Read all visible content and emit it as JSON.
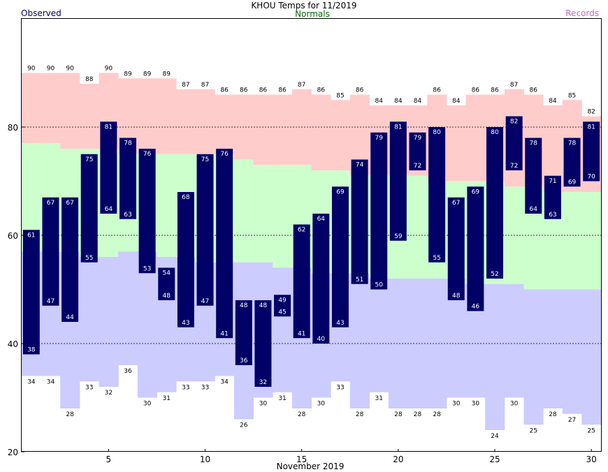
{
  "chart_data": {
    "type": "bar",
    "title": "KHOU Temps for 11/2019",
    "legend": {
      "observed": "Observed",
      "normals": "Normals",
      "records": "Records"
    },
    "xlabel": "November 2019",
    "ylabel": "",
    "xlim": [
      0.5,
      30.5
    ],
    "ylim": [
      20,
      100
    ],
    "x_ticks": [
      5,
      10,
      15,
      20,
      25,
      30
    ],
    "y_ticks": [
      20,
      40,
      60,
      80
    ],
    "gridlines_at": [
      40,
      60,
      80
    ],
    "days": [
      1,
      2,
      3,
      4,
      5,
      6,
      7,
      8,
      9,
      10,
      11,
      12,
      13,
      14,
      15,
      16,
      17,
      18,
      19,
      20,
      21,
      22,
      23,
      24,
      25,
      26,
      27,
      28,
      29,
      30
    ],
    "observed_high": [
      61,
      67,
      67,
      75,
      81,
      78,
      76,
      54,
      68,
      75,
      76,
      48,
      48,
      49,
      62,
      64,
      69,
      74,
      79,
      81,
      79,
      80,
      67,
      69,
      80,
      82,
      78,
      71,
      78,
      81
    ],
    "observed_low": [
      38,
      47,
      44,
      55,
      64,
      63,
      53,
      48,
      43,
      47,
      41,
      36,
      32,
      45,
      41,
      40,
      43,
      51,
      50,
      59,
      72,
      55,
      48,
      46,
      52,
      72,
      64,
      63,
      69,
      70
    ],
    "normal_high": [
      77,
      77,
      76,
      76,
      76,
      75,
      75,
      75,
      75,
      75,
      75,
      74,
      73,
      73,
      73,
      72,
      72,
      71,
      71,
      71,
      71,
      70,
      70,
      70,
      70,
      69,
      69,
      68,
      68,
      68
    ],
    "normal_low": [
      57,
      57,
      57,
      56,
      56,
      57,
      57,
      56,
      56,
      55,
      55,
      55,
      55,
      54,
      54,
      53,
      53,
      53,
      52,
      52,
      52,
      52,
      52,
      51,
      51,
      51,
      50,
      50,
      50,
      50
    ],
    "record_high": [
      90,
      90,
      90,
      88,
      90,
      89,
      89,
      89,
      87,
      87,
      86,
      86,
      86,
      86,
      87,
      86,
      85,
      86,
      84,
      84,
      84,
      86,
      84,
      86,
      86,
      87,
      86,
      84,
      85,
      82
    ],
    "record_low": [
      34,
      34,
      28,
      33,
      32,
      36,
      30,
      31,
      33,
      33,
      34,
      26,
      30,
      31,
      28,
      30,
      33,
      28,
      31,
      28,
      28,
      28,
      30,
      30,
      24,
      30,
      25,
      28,
      27,
      25
    ],
    "colors": {
      "observed_bar": "#000066",
      "observed_label": "#000066",
      "normals_band": "#ccffcc",
      "normals_label": "#006600",
      "records_high_band": "#ffcccc",
      "records_low_band": "#ccccff",
      "records_label": "#cc66cc",
      "bar_value_text": "#ffffff",
      "grid": "#000000"
    }
  }
}
